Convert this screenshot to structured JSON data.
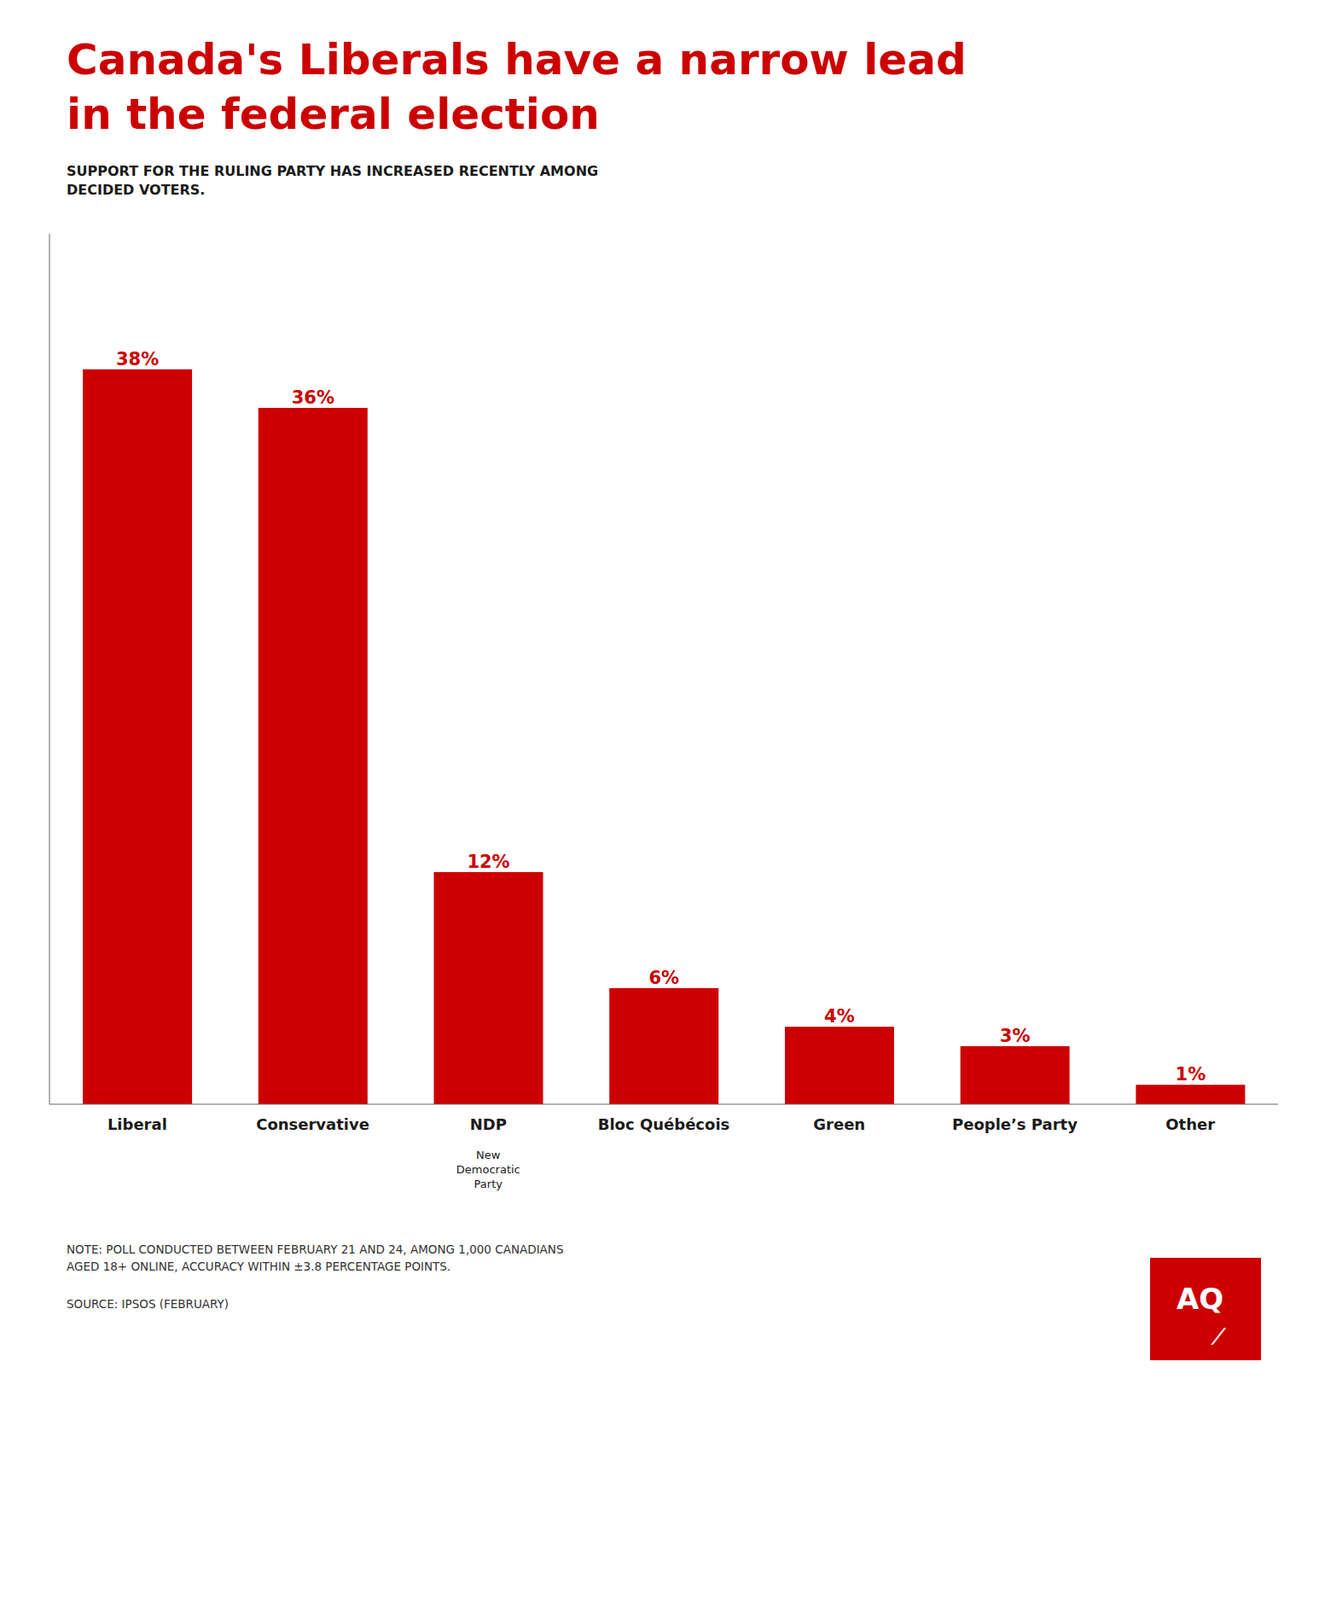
{
  "chart_data": {
    "type": "bar",
    "title": "Canada's Liberals have a narrow lead\nin the federal election",
    "subtitle": "SUPPORT FOR THE RULING PARTY HAS INCREASED RECENTLY AMONG\nDECIDED VOTERS.",
    "categories": [
      "Liberal",
      "Conservative",
      "NDP",
      "Bloc Québécois",
      "Green",
      "People’s Party",
      "Other"
    ],
    "values": [
      38,
      36,
      12,
      6,
      4,
      3,
      1
    ],
    "value_labels": [
      "38%",
      "36%",
      "12%",
      "6%",
      "4%",
      "3%",
      "1%"
    ],
    "data_labels": true,
    "color": "#CC0000",
    "ylim": [
      0,
      45
    ],
    "yticks": [],
    "tick_labels": "x",
    "grid": false,
    "annotations": [
      {
        "text": "New\nDemocratic\nParty",
        "category": "NDP"
      },
      {
        "text": "NOTE: POLL CONDUCTED BETWEEN FEBRUARY 21 AND 24, AMONG 1,000 CANADIANS\nAGED 18+ ONLINE, ACCURACY WITHIN ±3.8 PERCENTAGE POINTS."
      },
      {
        "text": "SOURCE: IPSOS (FEBRUARY)"
      },
      {
        "text": "AQ"
      },
      {
        "text": "⁄"
      }
    ]
  }
}
